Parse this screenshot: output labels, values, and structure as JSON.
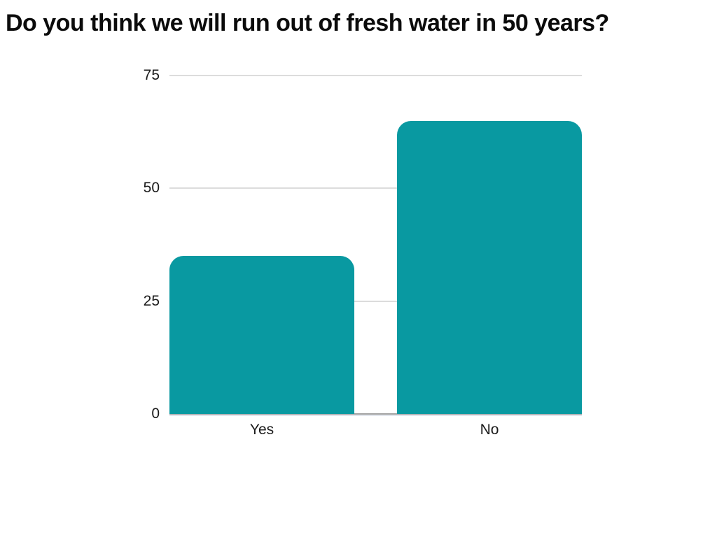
{
  "chart_data": {
    "type": "bar",
    "title": "Do you think we will run out of fresh water in 50 years?",
    "categories": [
      "Yes",
      "No"
    ],
    "values": [
      35,
      65
    ],
    "xlabel": "",
    "ylabel": "",
    "ylim": [
      0,
      75
    ],
    "yticks": [
      0,
      25,
      50,
      75
    ],
    "grid": true,
    "legend": "none"
  },
  "colors": {
    "bar_fill": "#0999A1",
    "gridline": "#DCDCDC",
    "baseline": "#A3A3A3",
    "text": "#1A1A1A",
    "title_text": "#0B0B0B",
    "background": "#FFFFFF"
  }
}
